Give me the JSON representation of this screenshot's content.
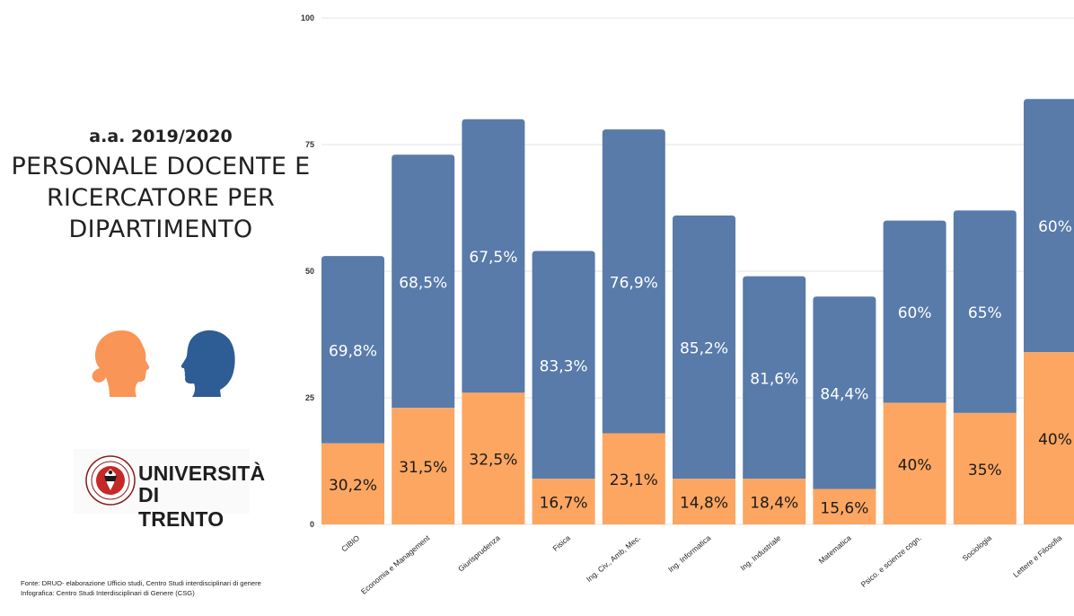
{
  "header": {
    "subtitle": "a.a. 2019/2020",
    "title_lines": [
      "PERSONALE DOCENTE E",
      "RICERCATORE PER",
      "DIPARTIMENTO"
    ]
  },
  "logo": {
    "line1": "UNIVERSITÀ",
    "line2": "DI TRENTO",
    "seal_text": "UNIVERSITAS STUDIORUM TRIDENTINA"
  },
  "footnotes": {
    "source": "Fonte: DRUO- elaborazione Ufficio studi, Centro Studi interdisciplinari di genere",
    "infographic": "Infografica: Centro Studi Interdisciplinari di Genere (CSG)"
  },
  "icons": {
    "woman": "woman-profile-icon",
    "man": "man-profile-icon"
  },
  "colors": {
    "male": "#587BAA",
    "female": "#FDA661",
    "woman_icon": "#F99556",
    "man_icon": "#2E5C94"
  },
  "chart_data": {
    "type": "bar",
    "stacked": true,
    "ylim": [
      0,
      100
    ],
    "yticks": [
      "0",
      "25",
      "50",
      "75",
      "100"
    ],
    "categories": [
      "CIBIO",
      "Economia e Management",
      "Giurisprudenza",
      "Fisica",
      "Ing. Civ., Amb, Mec.",
      "Ing. Informatica",
      "Ing. Industriale",
      "Matematica",
      "Psico. e scienze cogn.",
      "Sociologia",
      "Lettere e Filosofia"
    ],
    "series": [
      {
        "key": "female",
        "values": [
          16,
          23,
          26,
          9,
          18,
          9,
          9,
          7,
          24,
          22,
          34
        ],
        "labels": [
          "30,2%",
          "31,5%",
          "32,5%",
          "16,7%",
          "23,1%",
          "14,8%",
          "18,4%",
          "15,6%",
          "40%",
          "35%",
          "40%"
        ]
      },
      {
        "key": "male",
        "values": [
          37,
          50,
          54,
          45,
          60,
          52,
          40,
          38,
          36,
          40,
          50
        ],
        "labels": [
          "69,8%",
          "68,5%",
          "67,5%",
          "83,3%",
          "76,9%",
          "85,2%",
          "81,6%",
          "84,4%",
          "60%",
          "65%",
          "60%"
        ]
      }
    ],
    "grid": true,
    "legend": "none"
  }
}
